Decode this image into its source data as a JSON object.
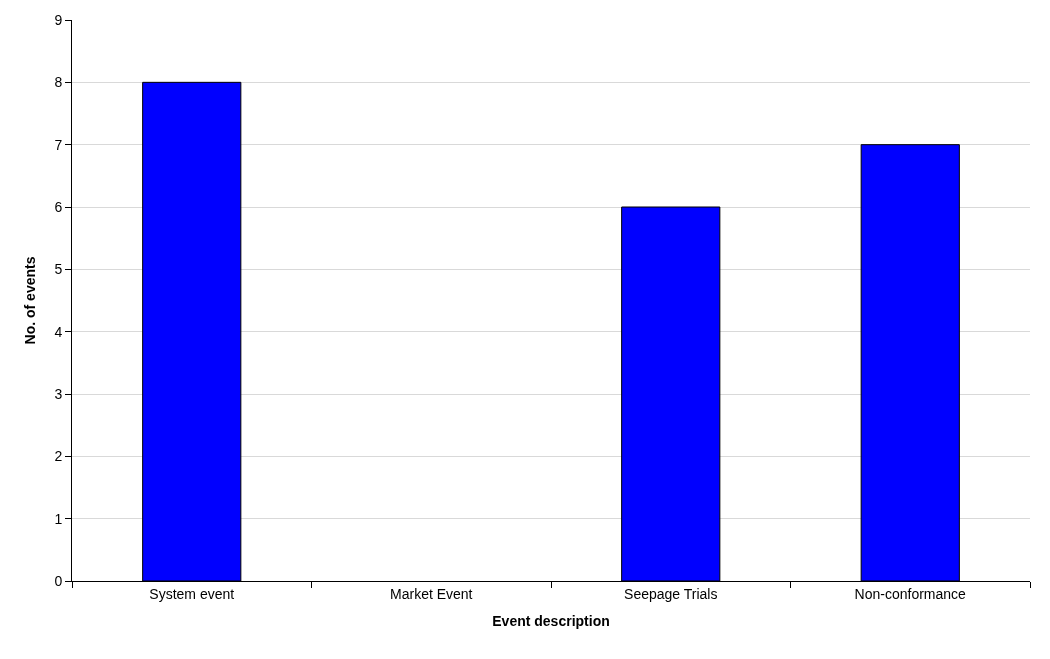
{
  "chart_data": {
    "type": "bar",
    "xlabel": "Event description",
    "ylabel": "No. of events",
    "categories": [
      "System event",
      "Market Event",
      "Seepage Trials",
      "Non-conformance"
    ],
    "values": [
      8,
      0,
      6,
      7
    ],
    "color": "#0000ff",
    "ylim": [
      0,
      9
    ],
    "yticks": [
      0,
      1,
      2,
      3,
      4,
      5,
      6,
      7,
      8,
      9
    ],
    "grid": "y"
  }
}
